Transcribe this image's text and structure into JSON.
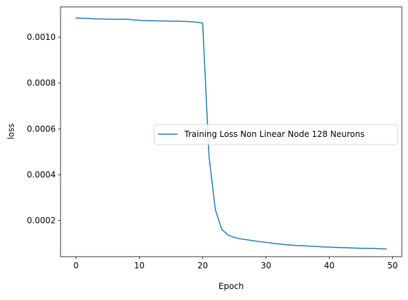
{
  "chart_data": {
    "type": "line",
    "title": "",
    "xlabel": "Epoch",
    "ylabel": "loss",
    "xlim": [
      -2.45,
      51.45
    ],
    "ylim": [
      4.25e-05,
      0.0011325
    ],
    "xticks": [
      0,
      10,
      20,
      30,
      40,
      50
    ],
    "xtick_labels": [
      "0",
      "10",
      "20",
      "30",
      "40",
      "50"
    ],
    "yticks": [
      0.0002,
      0.0004,
      0.0006,
      0.0008,
      0.001
    ],
    "ytick_labels": [
      "0.0002",
      "0.0004",
      "0.0006",
      "0.0008",
      "0.0010"
    ],
    "grid": false,
    "legend_position": "center-right",
    "series": [
      {
        "name": "Training Loss Non Linear Node 128 Neurons",
        "color": "#1f77b4",
        "x": [
          0,
          1,
          2,
          3,
          4,
          5,
          6,
          7,
          8,
          9,
          10,
          11,
          12,
          13,
          14,
          15,
          16,
          17,
          18,
          19,
          20,
          21,
          22,
          23,
          24,
          25,
          26,
          27,
          28,
          29,
          30,
          31,
          32,
          33,
          34,
          35,
          36,
          37,
          38,
          39,
          40,
          41,
          42,
          43,
          44,
          45,
          46,
          47,
          48,
          49
        ],
        "y": [
          0.001084,
          0.001083,
          0.001082,
          0.00108,
          0.00108,
          0.001079,
          0.001079,
          0.001078,
          0.001079,
          0.001076,
          0.001074,
          0.001073,
          0.001072,
          0.001071,
          0.001071,
          0.00107,
          0.00107,
          0.001069,
          0.001068,
          0.001066,
          0.001062,
          0.00048,
          0.000248,
          0.000162,
          0.000137,
          0.000126,
          0.00012,
          0.000116,
          0.000112,
          0.000108,
          0.000105,
          0.000101,
          9.8e-05,
          9.5e-05,
          9.3e-05,
          9.1e-05,
          9e-05,
          8.8e-05,
          8.7e-05,
          8.5e-05,
          8.4e-05,
          8.3e-05,
          8.2e-05,
          8.1e-05,
          8e-05,
          7.9e-05,
          7.9e-05,
          7.8e-05,
          7.7e-05,
          7.6e-05
        ]
      }
    ]
  }
}
